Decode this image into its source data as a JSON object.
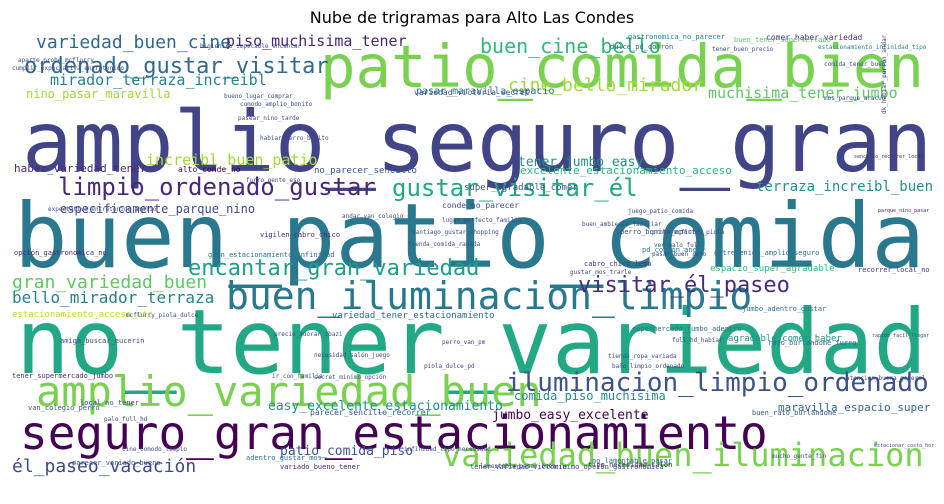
{
  "title": "Nube de trigramas para Alto Las Condes",
  "words": [
    {
      "text": "amplio_seguro_gran",
      "color": "#414487"
    },
    {
      "text": "buen_patio_comida",
      "color": "#2a788e"
    },
    {
      "text": "no_tener_variedad",
      "color": "#22a884"
    },
    {
      "text": "patio_comida_bien",
      "color": "#7ad151"
    },
    {
      "text": "seguro_gran_estacionamiento",
      "color": "#440154"
    },
    {
      "text": "buen_iluminacion_limpio",
      "color": "#2a788e"
    },
    {
      "text": "amplio_variedad_buen",
      "color": "#7ad151"
    },
    {
      "text": "variedad_buen_iluminacion",
      "color": "#7ad151"
    },
    {
      "text": "iluminacion_limpio_ordenado",
      "color": "#3b528b"
    },
    {
      "text": "limpio_ordenado_gustar",
      "color": "#482878"
    },
    {
      "text": "gustar_visitar_él",
      "color": "#22a884"
    },
    {
      "text": "encantar_gran_variedad",
      "color": "#1f9e89"
    },
    {
      "text": "ordenado_gustar_visitar",
      "color": "#31688e"
    },
    {
      "text": "variedad_buen_cine",
      "color": "#31688e"
    },
    {
      "text": "buen_cine_bello",
      "color": "#35b779"
    },
    {
      "text": "visitar_él_paseo",
      "color": "#472d7b"
    },
    {
      "text": "gran_variedad_buen",
      "color": "#5ec962"
    },
    {
      "text": "él_paseo_vacación",
      "color": "#3e4a89"
    },
    {
      "text": "cine_bello_mirador",
      "color": "#a0da39"
    },
    {
      "text": "mirador_terraza_increibl",
      "color": "#26828e"
    },
    {
      "text": "bello_mirador_terraza",
      "color": "#26828e"
    },
    {
      "text": "piso_muchisima_tener",
      "color": "#482878"
    },
    {
      "text": "increibl_buen_patio",
      "color": "#a0da39"
    },
    {
      "text": "terraza_increibl_buen",
      "color": "#21918c"
    },
    {
      "text": "especificamente_parque_nino",
      "color": "#3e4a89"
    },
    {
      "text": "muchisima_tener_jumbo",
      "color": "#5ec962"
    },
    {
      "text": "tener_jumbo_easy",
      "color": "#21918c"
    },
    {
      "text": "excelente_estacionamiento_acceso",
      "color": "#2fb47c"
    },
    {
      "text": "comida_piso_muchisima",
      "color": "#228c8d"
    },
    {
      "text": "easy_excelente_estacionamiento",
      "color": "#21918c"
    },
    {
      "text": "jumbo_easy_excelente",
      "color": "#440154"
    },
    {
      "text": "patio_comida_piso",
      "color": "#3b528b"
    },
    {
      "text": "maravilla_espacio_super",
      "color": "#31688e"
    },
    {
      "text": "nino_pasar_maravilla",
      "color": "#a0da39"
    },
    {
      "text": "pasar_maravilla_espacio",
      "color": "#2c728e"
    },
    {
      "text": "super_agradable_comer",
      "color": "#3b528b"
    },
    {
      "text": "parque_nino_pasar",
      "color": "#482878"
    },
    {
      "text": "sencillo_recorrer_local",
      "color": "#472d7b"
    },
    {
      "text": "haber_variedad_tener",
      "color": "#472d7b"
    },
    {
      "text": "espacio_super_agradable",
      "color": "#35b779"
    },
    {
      "text": "recorrer_local_no",
      "color": "#443983"
    },
    {
      "text": "estacionamiento_acceso_etc",
      "color": "#bddf26"
    },
    {
      "text": "variedad_tener_estacionamiento",
      "color": "#31688e"
    },
    {
      "text": "agradable_comer_haber",
      "color": "#21918c"
    },
    {
      "text": "comer_haber_variedad",
      "color": "#472d7b"
    },
    {
      "text": "no_parecer_sencillo",
      "color": "#3b528b"
    },
    {
      "text": "alto_conde_no",
      "color": "#440154"
    },
    {
      "text": "conde_no_parecer",
      "color": "#3e4a89"
    },
    {
      "text": "parecer_sencillo_recorrer",
      "color": "#3b528b"
    },
    {
      "text": "variedad_victoria_secret",
      "color": "#3b528b"
    },
    {
      "text": "gastronomica_no_parecer",
      "color": "#26828e"
    },
    {
      "text": "buen_tener_supermercado",
      "color": "#5ec962"
    },
    {
      "text": "estacionamiento_infinidad_tipo",
      "color": "#26828e"
    },
    {
      "text": "dulce_pd_corrón",
      "color": "#31688e"
    },
    {
      "text": "cabro_chico_lego",
      "color": "#443983"
    },
    {
      "text": "variado_bueno_tener",
      "color": "#482878"
    },
    {
      "text": "opción_gastronomica_no",
      "color": "#482878"
    },
    {
      "text": "vigilen_cabro_chico",
      "color": "#482878"
    },
    {
      "text": "local_no_tener",
      "color": "#3b528b"
    },
    {
      "text": "tener_variedad_victoria",
      "color": "#3e4a89"
    },
    {
      "text": "buen_rato_burlandome",
      "color": "#3b528b"
    },
    {
      "text": "parecer_variado_bueno",
      "color": "#3b528b"
    },
    {
      "text": "adentro_gustar_mos",
      "color": "#2c728e"
    },
    {
      "text": "no_lamentable_pasar",
      "color": "#31688e"
    },
    {
      "text": "tipo_necesidad_salón",
      "color": "#482878"
    },
    {
      "text": "minimo_opción_gastronomica",
      "color": "#3e4a89"
    },
    {
      "text": "tener_supermercado_jumbo",
      "color": "#472d7b"
    },
    {
      "text": "supermercado_jumbo_adentro",
      "color": "#2c728e"
    },
    {
      "text": "jumbo_adentro_gustar",
      "color": "#2c728e"
    },
    {
      "text": "rato_burlandome_furro",
      "color": "#31688e"
    },
    {
      "text": "perro_bonito_aparte",
      "color": "#3e4a89"
    },
    {
      "text": "entretenido_amplio_seguro",
      "color": "#2c728e"
    },
    {
      "text": "gran_estacionamiento_infinidad",
      "color": "#2c728e"
    },
    {
      "text": "pd_corrón_andar",
      "color": "#26828e"
    },
    {
      "text": "amiga_buscar_eucerin",
      "color": "#3e4a89"
    },
    {
      "text": "van_colegio_perro",
      "color": "#3b528b"
    },
    {
      "text": "palo_full_hd",
      "color": "#3e4a89"
    },
    {
      "text": "mcflurry_piola_dulce",
      "color": "#3e4a89"
    },
    {
      "text": "cumplir_expectativa_entretenido",
      "color": "#3e4a89"
    },
    {
      "text": "aparte_probe_mcflurry",
      "color": "#3e4a89"
    },
    {
      "text": "higienico_impecable_encantar",
      "color": "#3e4a89"
    },
    {
      "text": "habiar_perro_bonito",
      "color": "#3e4a89"
    },
    {
      "text": "tener_buen_precio",
      "color": "#3e4a89"
    },
    {
      "text": "andar_van_colegio",
      "color": "#3e4a89"
    },
    {
      "text": "juego_patio_comida",
      "color": "#3e4a89"
    },
    {
      "text": "probe_mcflurry_piola",
      "color": "#3e4a89"
    },
    {
      "text": "ver_palo_full",
      "color": "#3e4a89"
    },
    {
      "text": "pasar_buen_rato",
      "color": "#3e4a89"
    },
    {
      "text": "perro_van_pm",
      "color": "#3e4a89"
    },
    {
      "text": "piola_dulce_pd",
      "color": "#3e4a89"
    },
    {
      "text": "necesidad_salón_juego",
      "color": "#3e4a89"
    },
    {
      "text": "secret_minimo_opción",
      "color": "#3e4a89"
    },
    {
      "text": "infinidad_tipo_necesidad",
      "color": "#3e4a89"
    },
    {
      "text": "lamentable_pasar_buen",
      "color": "#3e4a89"
    },
    {
      "text": "precio_adorar_ibazi",
      "color": "#3e4a89"
    },
    {
      "text": "furro_gente_eso",
      "color": "#3e4a89"
    },
    {
      "text": "gustar_mos_trarle",
      "color": "#3e4a89"
    },
    {
      "text": "expectativa_entretenido_amplio",
      "color": "#3e4a89"
    },
    {
      "text": "comida_tener_buen",
      "color": "#3e4a89"
    },
    {
      "text": "mos_parque_aracuo",
      "color": "#3e4a89"
    },
    {
      "text": "corrón_andar_van",
      "color": "#3e4a89"
    },
    {
      "text": "dk_habiar_perro",
      "color": "#3e4a89"
    },
    {
      "text": "lugar_perfecto_familia",
      "color": "#3e4a89"
    },
    {
      "text": "santiago_gustar_shopping",
      "color": "#3e4a89"
    },
    {
      "text": "tienda_comida_rapida",
      "color": "#3e4a89"
    },
    {
      "text": "buen_ambiente_familiar",
      "color": "#3e4a89"
    },
    {
      "text": "full_hd_habiar",
      "color": "#3e4a89"
    },
    {
      "text": "cine_comodo_limpio",
      "color": "#3e4a89"
    },
    {
      "text": "ir_con_familia",
      "color": "#3e4a89"
    },
    {
      "text": "mucho_gente_fin",
      "color": "#3e4a89"
    },
    {
      "text": "estacionar_costo_hora",
      "color": "#3e4a89"
    },
    {
      "text": "atencion_buena_general",
      "color": "#3e4a89"
    },
    {
      "text": "rapido_facil_llegar",
      "color": "#3e4a89"
    },
    {
      "text": "tienda_ropa_variada",
      "color": "#3e4a89"
    },
    {
      "text": "baño_limpio_ordenado",
      "color": "#3e4a89"
    },
    {
      "text": "bueno_lugar_comprar",
      "color": "#3e4a89"
    },
    {
      "text": "comodo_amplio_bonito",
      "color": "#3e4a89"
    },
    {
      "text": "pasear_nino_tarde",
      "color": "#3e4a89"
    },
    {
      "text": "ropa_buen_precio",
      "color": "#3e4a89"
    },
    {
      "text": "acceso_facil_metro",
      "color": "#3e4a89"
    }
  ]
}
